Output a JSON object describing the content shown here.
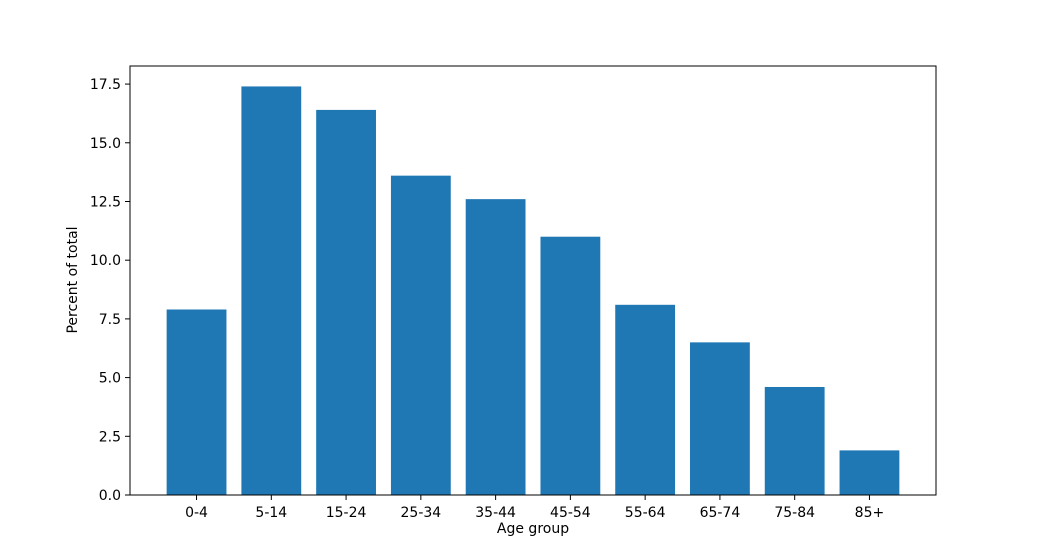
{
  "figure": {
    "background": "#ffffff",
    "frame_color": "#000000",
    "text_color": "#000000"
  },
  "chart_data": {
    "type": "bar",
    "title": "",
    "xlabel": "Age group",
    "ylabel": "Percent of total",
    "categories": [
      "0-4",
      "5-14",
      "15-24",
      "25-34",
      "35-44",
      "45-54",
      "55-64",
      "65-74",
      "75-84",
      "85+"
    ],
    "values": [
      7.9,
      17.4,
      16.4,
      13.6,
      12.6,
      11.0,
      8.1,
      6.5,
      4.6,
      1.9
    ],
    "bar_color": "#1f77b4",
    "bar_width": 0.8,
    "ylim": [
      0,
      18.27
    ],
    "xlim": [
      -0.89,
      9.89
    ],
    "yticks": [
      "0.0",
      "2.5",
      "5.0",
      "7.5",
      "10.0",
      "12.5",
      "15.0",
      "17.5"
    ],
    "grid": false,
    "legend_position": "none"
  }
}
